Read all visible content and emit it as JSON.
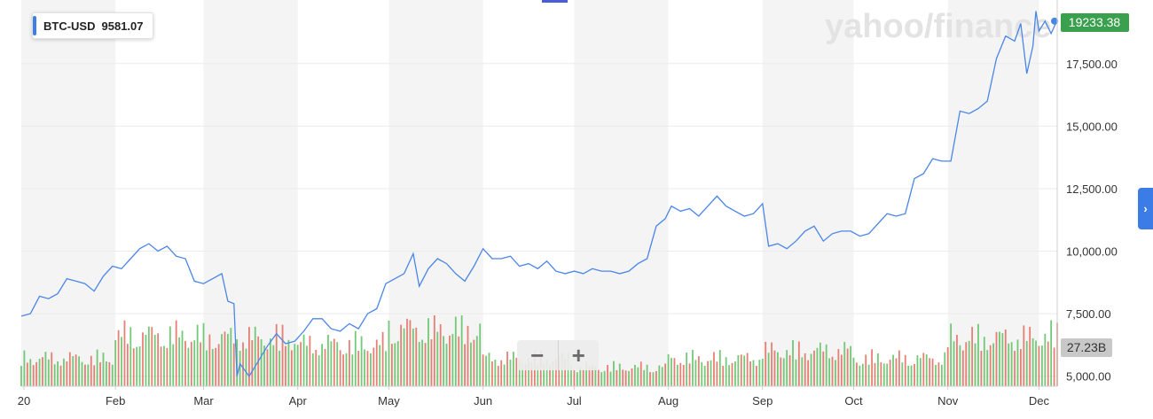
{
  "watermark": "yahoo/finance",
  "tooltip": {
    "symbol": "BTC-USD",
    "value": "9581.07",
    "accent": "#3d7ee8"
  },
  "last_price_badge": {
    "text": "19233.38",
    "color": "#3aa04e"
  },
  "volume_badge": {
    "text": "27.23B",
    "color": "#c8c8c8"
  },
  "zoom": {
    "minus_label": "−",
    "plus_label": "+"
  },
  "nav": {
    "next_label": "›"
  },
  "colors": {
    "line": "#4a86e8",
    "volume_up": "#5cbf60",
    "volume_down": "#e36a5c",
    "band": "#f4f4f4",
    "grid": "#ebebeb"
  },
  "chart_data": {
    "type": "line",
    "title": "",
    "xlabel": "",
    "ylabel": "",
    "x_axis_labels": [
      "20",
      "Feb",
      "Mar",
      "Apr",
      "May",
      "Jun",
      "Jul",
      "Aug",
      "Sep",
      "Oct",
      "Nov",
      "Dec"
    ],
    "y_axis_labels": [
      "5,000.00",
      "7,500.00",
      "10,000.00",
      "12,500.00",
      "15,000.00",
      "17,500.00"
    ],
    "y_ticks": [
      5000,
      7500,
      10000,
      12500,
      15000,
      17500
    ],
    "ylim": [
      4600,
      19900
    ],
    "x_range": [
      "2020-01-01",
      "2020-12-07"
    ],
    "grid": true,
    "series": [
      {
        "values": [
          [
            "2020-01-01",
            7400
          ],
          [
            "2020-01-04",
            7500
          ],
          [
            "2020-01-07",
            8200
          ],
          [
            "2020-01-10",
            8100
          ],
          [
            "2020-01-13",
            8300
          ],
          [
            "2020-01-16",
            8900
          ],
          [
            "2020-01-19",
            8800
          ],
          [
            "2020-01-22",
            8700
          ],
          [
            "2020-01-25",
            8400
          ],
          [
            "2020-01-28",
            9000
          ],
          [
            "2020-01-31",
            9400
          ],
          [
            "2020-02-03",
            9300
          ],
          [
            "2020-02-06",
            9700
          ],
          [
            "2020-02-09",
            10100
          ],
          [
            "2020-02-12",
            10300
          ],
          [
            "2020-02-15",
            10000
          ],
          [
            "2020-02-18",
            10200
          ],
          [
            "2020-02-21",
            9800
          ],
          [
            "2020-02-24",
            9700
          ],
          [
            "2020-02-27",
            8800
          ],
          [
            "2020-03-01",
            8700
          ],
          [
            "2020-03-04",
            8900
          ],
          [
            "2020-03-07",
            9100
          ],
          [
            "2020-03-09",
            8000
          ],
          [
            "2020-03-11",
            7900
          ],
          [
            "2020-03-12",
            5000
          ],
          [
            "2020-03-13",
            5500
          ],
          [
            "2020-03-16",
            5000
          ],
          [
            "2020-03-19",
            5600
          ],
          [
            "2020-03-22",
            6200
          ],
          [
            "2020-03-25",
            6700
          ],
          [
            "2020-03-28",
            6300
          ],
          [
            "2020-03-31",
            6400
          ],
          [
            "2020-04-03",
            6800
          ],
          [
            "2020-04-06",
            7300
          ],
          [
            "2020-04-09",
            7300
          ],
          [
            "2020-04-12",
            6900
          ],
          [
            "2020-04-15",
            6800
          ],
          [
            "2020-04-18",
            7100
          ],
          [
            "2020-04-21",
            6900
          ],
          [
            "2020-04-24",
            7500
          ],
          [
            "2020-04-27",
            7700
          ],
          [
            "2020-04-30",
            8700
          ],
          [
            "2020-05-03",
            8900
          ],
          [
            "2020-05-06",
            9100
          ],
          [
            "2020-05-09",
            9900
          ],
          [
            "2020-05-11",
            8600
          ],
          [
            "2020-05-14",
            9300
          ],
          [
            "2020-05-17",
            9700
          ],
          [
            "2020-05-20",
            9500
          ],
          [
            "2020-05-23",
            9100
          ],
          [
            "2020-05-26",
            8800
          ],
          [
            "2020-05-29",
            9400
          ],
          [
            "2020-06-01",
            10100
          ],
          [
            "2020-06-04",
            9700
          ],
          [
            "2020-06-07",
            9700
          ],
          [
            "2020-06-10",
            9800
          ],
          [
            "2020-06-13",
            9400
          ],
          [
            "2020-06-16",
            9500
          ],
          [
            "2020-06-19",
            9300
          ],
          [
            "2020-06-22",
            9600
          ],
          [
            "2020-06-25",
            9200
          ],
          [
            "2020-06-28",
            9100
          ],
          [
            "2020-07-01",
            9200
          ],
          [
            "2020-07-04",
            9100
          ],
          [
            "2020-07-07",
            9300
          ],
          [
            "2020-07-10",
            9200
          ],
          [
            "2020-07-13",
            9200
          ],
          [
            "2020-07-16",
            9100
          ],
          [
            "2020-07-19",
            9200
          ],
          [
            "2020-07-22",
            9500
          ],
          [
            "2020-07-25",
            9700
          ],
          [
            "2020-07-28",
            11000
          ],
          [
            "2020-07-31",
            11300
          ],
          [
            "2020-08-02",
            11800
          ],
          [
            "2020-08-05",
            11600
          ],
          [
            "2020-08-08",
            11700
          ],
          [
            "2020-08-11",
            11400
          ],
          [
            "2020-08-14",
            11800
          ],
          [
            "2020-08-17",
            12200
          ],
          [
            "2020-08-20",
            11800
          ],
          [
            "2020-08-23",
            11600
          ],
          [
            "2020-08-26",
            11400
          ],
          [
            "2020-08-29",
            11500
          ],
          [
            "2020-09-01",
            11900
          ],
          [
            "2020-09-03",
            10200
          ],
          [
            "2020-09-06",
            10300
          ],
          [
            "2020-09-09",
            10100
          ],
          [
            "2020-09-12",
            10400
          ],
          [
            "2020-09-15",
            10800
          ],
          [
            "2020-09-18",
            11000
          ],
          [
            "2020-09-21",
            10400
          ],
          [
            "2020-09-24",
            10700
          ],
          [
            "2020-09-27",
            10800
          ],
          [
            "2020-09-30",
            10800
          ],
          [
            "2020-10-03",
            10600
          ],
          [
            "2020-10-06",
            10700
          ],
          [
            "2020-10-09",
            11100
          ],
          [
            "2020-10-12",
            11500
          ],
          [
            "2020-10-15",
            11400
          ],
          [
            "2020-10-18",
            11500
          ],
          [
            "2020-10-21",
            12900
          ],
          [
            "2020-10-24",
            13100
          ],
          [
            "2020-10-27",
            13700
          ],
          [
            "2020-10-30",
            13600
          ],
          [
            "2020-11-02",
            13600
          ],
          [
            "2020-11-05",
            15600
          ],
          [
            "2020-11-08",
            15500
          ],
          [
            "2020-11-11",
            15700
          ],
          [
            "2020-11-14",
            16000
          ],
          [
            "2020-11-17",
            17700
          ],
          [
            "2020-11-20",
            18600
          ],
          [
            "2020-11-23",
            18400
          ],
          [
            "2020-11-25",
            19100
          ],
          [
            "2020-11-27",
            17100
          ],
          [
            "2020-11-29",
            18200
          ],
          [
            "2020-11-30",
            19600
          ],
          [
            "2020-12-01",
            18800
          ],
          [
            "2020-12-03",
            19200
          ],
          [
            "2020-12-05",
            18700
          ],
          [
            "2020-12-07",
            19233
          ]
        ]
      }
    ],
    "volume": {
      "unit": "B",
      "last_label": "27.23B",
      "month_levels": [
        [
          "2020-01",
          22
        ],
        [
          "2020-02",
          40
        ],
        [
          "2020-03",
          38
        ],
        [
          "2020-04",
          33
        ],
        [
          "2020-05",
          45
        ],
        [
          "2020-06",
          22
        ],
        [
          "2020-07",
          15
        ],
        [
          "2020-08",
          22
        ],
        [
          "2020-09",
          28
        ],
        [
          "2020-10",
          22
        ],
        [
          "2020-11",
          38
        ],
        [
          "2020-12",
          40
        ]
      ]
    }
  }
}
